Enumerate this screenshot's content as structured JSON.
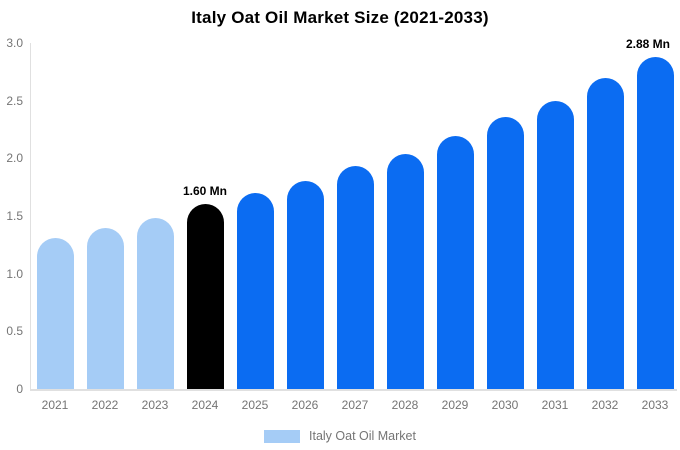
{
  "chart_data": {
    "type": "bar",
    "title": "Italy Oat Oil Market Size (2021-2033)",
    "categories": [
      "2021",
      "2022",
      "2023",
      "2024",
      "2025",
      "2026",
      "2027",
      "2028",
      "2029",
      "2030",
      "2031",
      "2032",
      "2033"
    ],
    "values": [
      1.31,
      1.4,
      1.48,
      1.6,
      1.7,
      1.8,
      1.93,
      2.04,
      2.19,
      2.36,
      2.5,
      2.7,
      2.88
    ],
    "unit": "Mn",
    "bar_colors": [
      "#a5ccf6",
      "#a5ccf6",
      "#a5ccf6",
      "#000000",
      "#0b6cf2",
      "#0b6cf2",
      "#0b6cf2",
      "#0b6cf2",
      "#0b6cf2",
      "#0b6cf2",
      "#0b6cf2",
      "#0b6cf2",
      "#0b6cf2"
    ],
    "annotations": [
      {
        "category": "2024",
        "label": "1.60 Mn"
      },
      {
        "category": "2033",
        "label": "2.88 Mn"
      }
    ],
    "ylim": [
      0,
      3
    ],
    "yticks": [
      "3.0",
      "2.5",
      "2.0",
      "1.5",
      "1.0",
      "0.5",
      "0"
    ],
    "grid": false,
    "legend_position": "bottom"
  },
  "legend": {
    "label": "Italy Oat Oil Market",
    "swatch_color": "#a5ccf6"
  },
  "colors": {
    "bar_light_blue": "#a5ccf6",
    "bar_blue": "#0b6cf2",
    "bar_black": "#000000",
    "axis_line": "#e0e0e0",
    "muted_text": "#757575",
    "title_text": "#000000"
  }
}
